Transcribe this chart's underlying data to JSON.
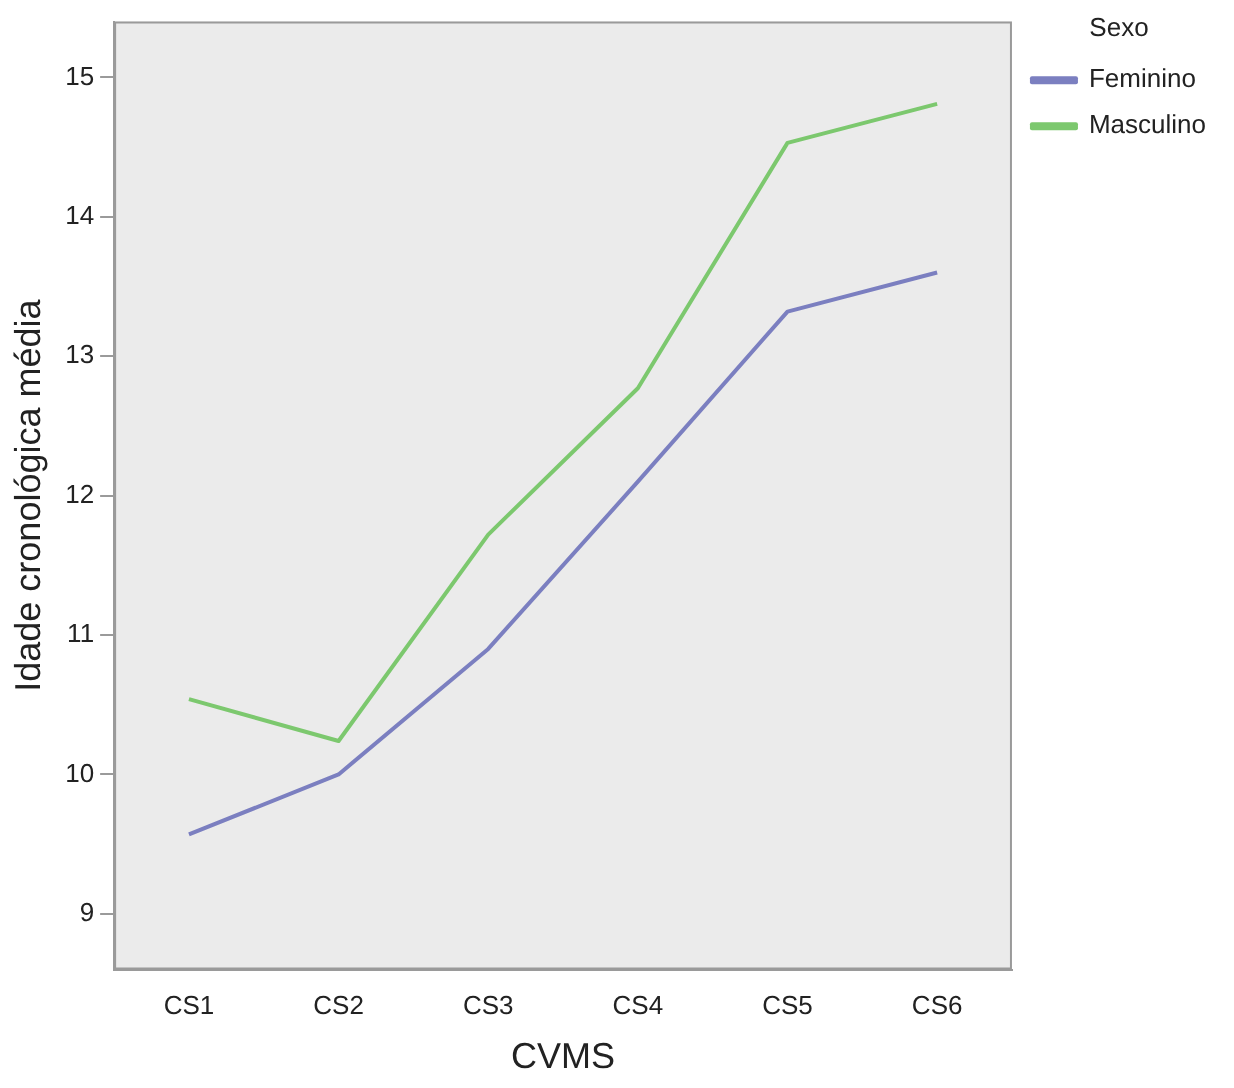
{
  "chart_data": {
    "type": "line",
    "xlabel": "CVMS",
    "ylabel": "Idade cronológica média",
    "legend_title": "Sexo",
    "categories": [
      "CS1",
      "CS2",
      "CS3",
      "CS4",
      "CS5",
      "CS6"
    ],
    "series": [
      {
        "name": "Feminino",
        "color": "#7b7fc0",
        "values": [
          9.57,
          10.0,
          10.9,
          12.1,
          13.32,
          13.6
        ]
      },
      {
        "name": "Masculino",
        "color": "#7cc86e",
        "values": [
          10.54,
          10.24,
          11.72,
          12.77,
          14.53,
          14.81
        ]
      }
    ],
    "ylim": [
      8.6,
      15.4
    ],
    "yticks": [
      9,
      10,
      11,
      12,
      13,
      14,
      15
    ],
    "grid": false,
    "legend": "top right",
    "marker": "none",
    "line_style": "solid"
  }
}
